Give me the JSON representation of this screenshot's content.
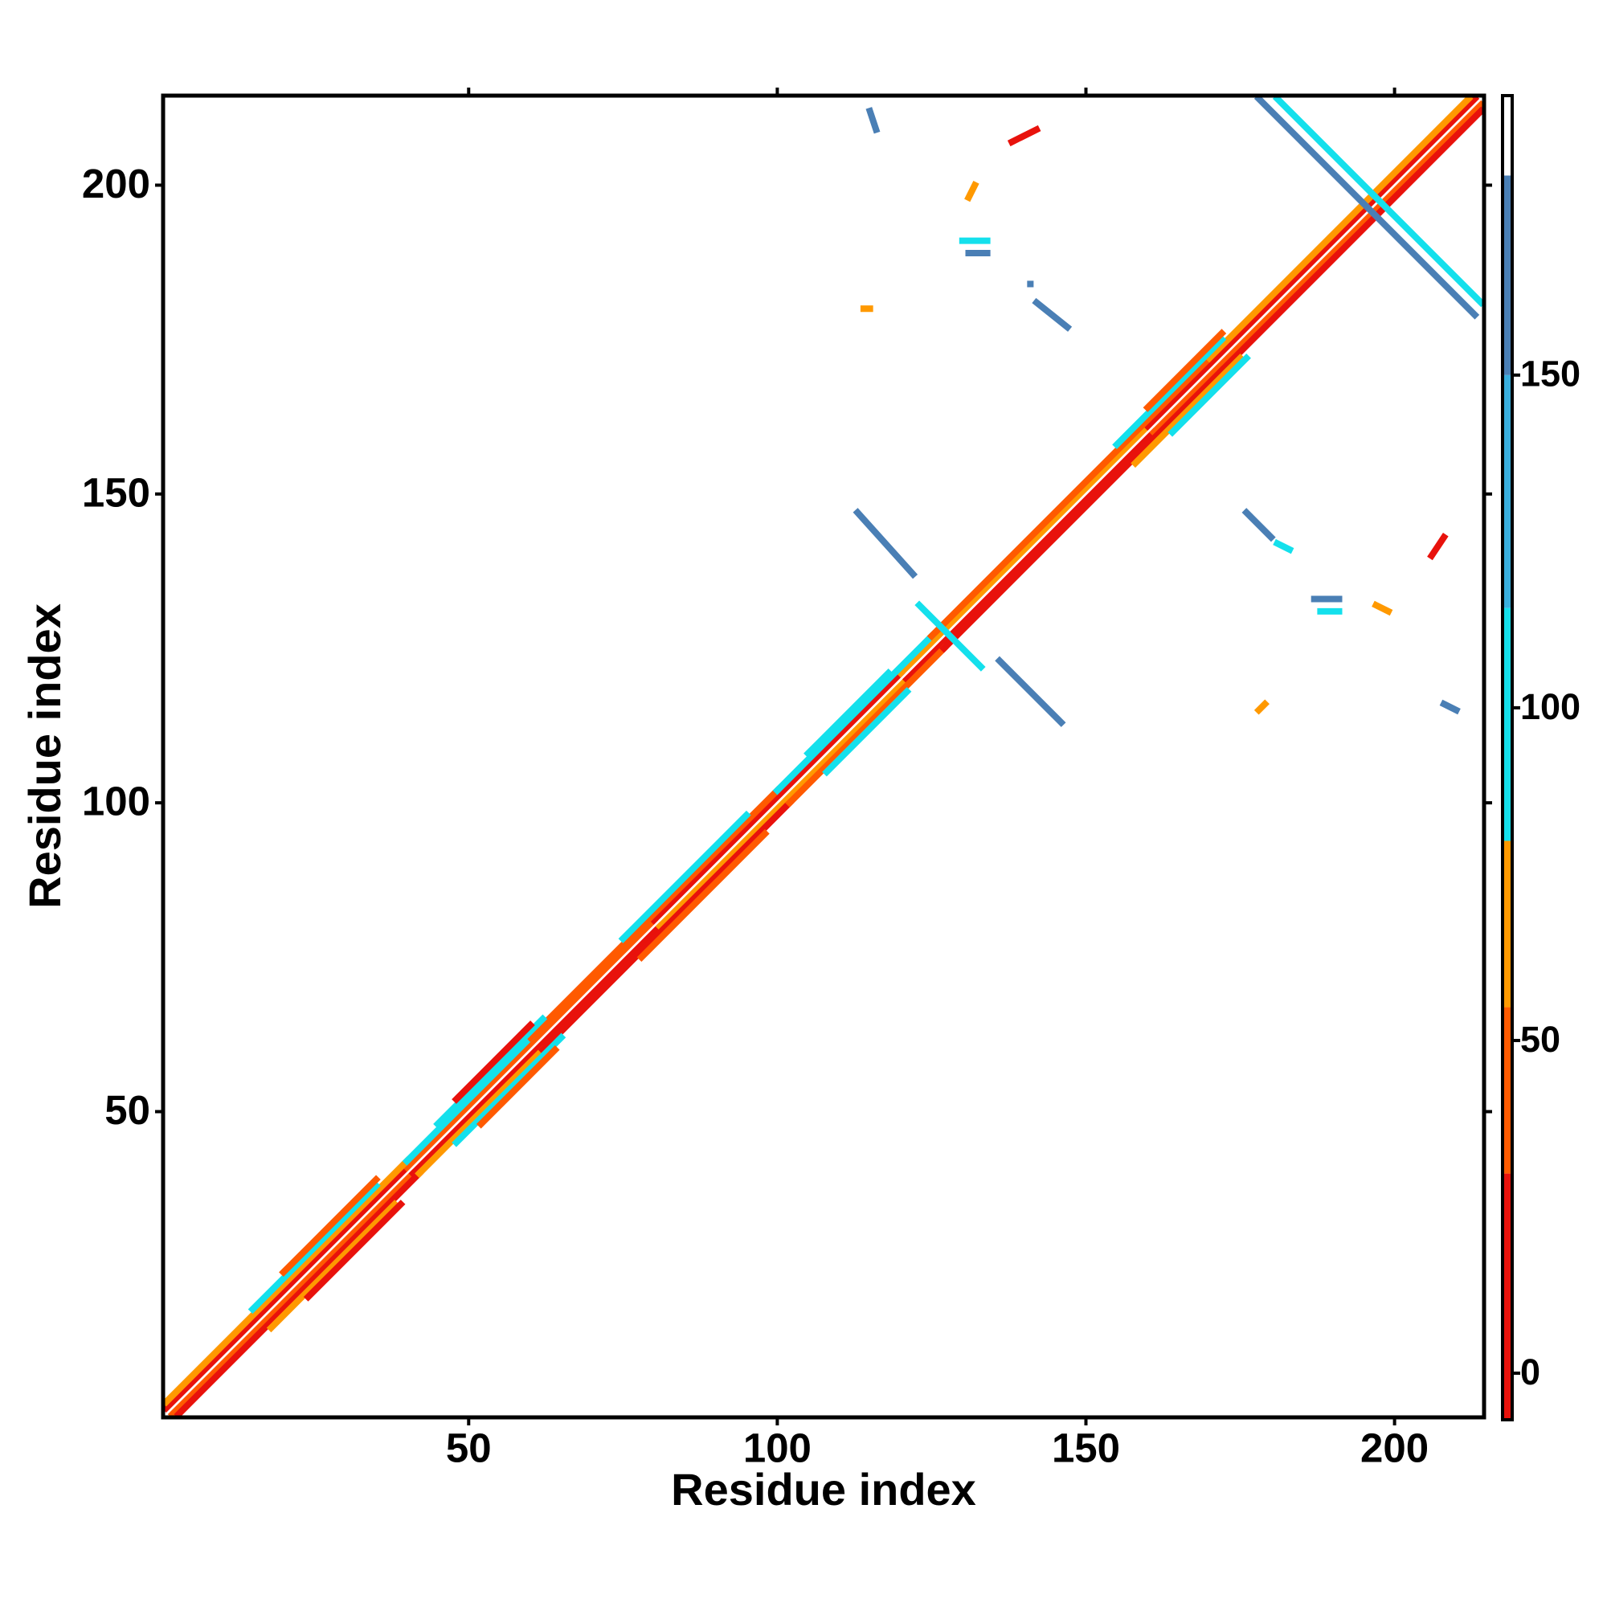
{
  "chart_data": {
    "type": "contact_map",
    "xlabel": "Residue index",
    "ylabel": "Residue index",
    "xlim": [
      0.5,
      214.5
    ],
    "ylim": [
      0.5,
      214.5
    ],
    "xticks": [
      50,
      100,
      150,
      200
    ],
    "yticks": [
      50,
      100,
      150,
      200
    ],
    "colorbar": {
      "bounds": [
        -7,
        30,
        55,
        80,
        115,
        150,
        180,
        192
      ],
      "colors": [
        "#e8120c",
        "#ff5a00",
        "#ff9900",
        "#14e0ec",
        "#39aedd",
        "#4a7fb5",
        "#ffffff"
      ],
      "ticks": [
        0,
        50,
        100,
        150
      ]
    },
    "segments": [
      {
        "x": [
          1,
          40
        ],
        "y": [
          2,
          41
        ],
        "value": 20
      },
      {
        "x": [
          40,
          80
        ],
        "y": [
          41,
          81
        ],
        "value": 45
      },
      {
        "x": [
          80,
          120
        ],
        "y": [
          81,
          121
        ],
        "value": 15
      },
      {
        "x": [
          120,
          160
        ],
        "y": [
          121,
          161
        ],
        "value": 60
      },
      {
        "x": [
          160,
          213
        ],
        "y": [
          161,
          214
        ],
        "value": 25
      },
      {
        "x": [
          2,
          41
        ],
        "y": [
          1,
          40
        ],
        "value": 45
      },
      {
        "x": [
          41,
          81
        ],
        "y": [
          40,
          80
        ],
        "value": 20
      },
      {
        "x": [
          81,
          121
        ],
        "y": [
          80,
          120
        ],
        "value": 60
      },
      {
        "x": [
          121,
          161
        ],
        "y": [
          120,
          160
        ],
        "value": 15
      },
      {
        "x": [
          161,
          214
        ],
        "y": [
          160,
          213
        ],
        "value": 50
      },
      {
        "x": [
          1,
          40
        ],
        "y": [
          3,
          42
        ],
        "value": 70
      },
      {
        "x": [
          40,
          60
        ],
        "y": [
          42,
          62
        ],
        "value": 100
      },
      {
        "x": [
          60,
          100
        ],
        "y": [
          62,
          102
        ],
        "value": 40
      },
      {
        "x": [
          100,
          125
        ],
        "y": [
          102,
          127
        ],
        "value": 95
      },
      {
        "x": [
          125,
          170
        ],
        "y": [
          127,
          172
        ],
        "value": 50
      },
      {
        "x": [
          170,
          212
        ],
        "y": [
          172,
          214
        ],
        "value": 65
      },
      {
        "x": [
          3,
          42
        ],
        "y": [
          1,
          40
        ],
        "value": 10
      },
      {
        "x": [
          42,
          62
        ],
        "y": [
          40,
          60
        ],
        "value": 65
      },
      {
        "x": [
          62,
          102
        ],
        "y": [
          60,
          100
        ],
        "value": 10
      },
      {
        "x": [
          102,
          127
        ],
        "y": [
          100,
          125
        ],
        "value": 40
      },
      {
        "x": [
          127,
          172
        ],
        "y": [
          125,
          170
        ],
        "value": 20
      },
      {
        "x": [
          172,
          214
        ],
        "y": [
          170,
          212
        ],
        "value": 15
      },
      {
        "x": [
          15,
          35
        ],
        "y": [
          18,
          38
        ],
        "value": 105
      },
      {
        "x": [
          45,
          62
        ],
        "y": [
          48,
          65
        ],
        "value": 100
      },
      {
        "x": [
          75,
          95
        ],
        "y": [
          78,
          98
        ],
        "value": 110
      },
      {
        "x": [
          105,
          118
        ],
        "y": [
          108,
          121
        ],
        "value": 100
      },
      {
        "x": [
          155,
          172
        ],
        "y": [
          158,
          175
        ],
        "value": 100
      },
      {
        "x": [
          18,
          38
        ],
        "y": [
          15,
          35
        ],
        "value": 60
      },
      {
        "x": [
          48,
          65
        ],
        "y": [
          45,
          62
        ],
        "value": 100
      },
      {
        "x": [
          78,
          98
        ],
        "y": [
          75,
          95
        ],
        "value": 40
      },
      {
        "x": [
          108,
          121
        ],
        "y": [
          105,
          118
        ],
        "value": 105
      },
      {
        "x": [
          158,
          175
        ],
        "y": [
          155,
          172
        ],
        "value": 60
      },
      {
        "x": [
          20,
          35
        ],
        "y": [
          24,
          39
        ],
        "value": 30
      },
      {
        "x": [
          48,
          60
        ],
        "y": [
          52,
          64
        ],
        "value": 20
      },
      {
        "x": [
          160,
          172
        ],
        "y": [
          164,
          176
        ],
        "value": 30
      },
      {
        "x": [
          24,
          39
        ],
        "y": [
          20,
          35
        ],
        "value": 20
      },
      {
        "x": [
          52,
          64
        ],
        "y": [
          48,
          60
        ],
        "value": 45
      },
      {
        "x": [
          164,
          176
        ],
        "y": [
          160,
          172
        ],
        "value": 105
      },
      {
        "x": [
          113,
          122
        ],
        "y": [
          147,
          137
        ],
        "value": 160
      },
      {
        "x": [
          136,
          146
        ],
        "y": [
          123,
          113
        ],
        "value": 160
      },
      {
        "x": [
          123,
          133
        ],
        "y": [
          132,
          122
        ],
        "value": 100
      },
      {
        "x": [
          178,
          213
        ],
        "y": [
          214,
          179
        ],
        "value": 165
      },
      {
        "x": [
          181,
          214
        ],
        "y": [
          214,
          181
        ],
        "value": 110
      },
      {
        "x": [
          115,
          116
        ],
        "y": [
          212,
          209
        ],
        "value": 150
      },
      {
        "x": [
          138,
          142
        ],
        "y": [
          207,
          209
        ],
        "value": 10
      },
      {
        "x": [
          131,
          132
        ],
        "y": [
          198,
          200
        ],
        "value": 60
      },
      {
        "x": [
          130,
          134
        ],
        "y": [
          191,
          191
        ],
        "value": 110
      },
      {
        "x": [
          131,
          134
        ],
        "y": [
          189,
          189
        ],
        "value": 150
      },
      {
        "x": [
          141,
          141
        ],
        "y": [
          184,
          184
        ],
        "value": 150
      },
      {
        "x": [
          142,
          147
        ],
        "y": [
          181,
          177
        ],
        "value": 155
      },
      {
        "x": [
          114,
          115
        ],
        "y": [
          180,
          180
        ],
        "value": 60
      },
      {
        "x": [
          176,
          180
        ],
        "y": [
          147,
          143
        ],
        "value": 150
      },
      {
        "x": [
          181,
          183
        ],
        "y": [
          142,
          141
        ],
        "value": 110
      },
      {
        "x": [
          187,
          191
        ],
        "y": [
          133,
          133
        ],
        "value": 150
      },
      {
        "x": [
          188,
          191
        ],
        "y": [
          131,
          131
        ],
        "value": 110
      },
      {
        "x": [
          197,
          199
        ],
        "y": [
          132,
          131
        ],
        "value": 60
      },
      {
        "x": [
          206,
          208
        ],
        "y": [
          140,
          143
        ],
        "value": 15
      },
      {
        "x": [
          178,
          179
        ],
        "y": [
          115,
          116
        ],
        "value": 60
      },
      {
        "x": [
          208,
          210
        ],
        "y": [
          116,
          115
        ],
        "value": 150
      }
    ]
  }
}
